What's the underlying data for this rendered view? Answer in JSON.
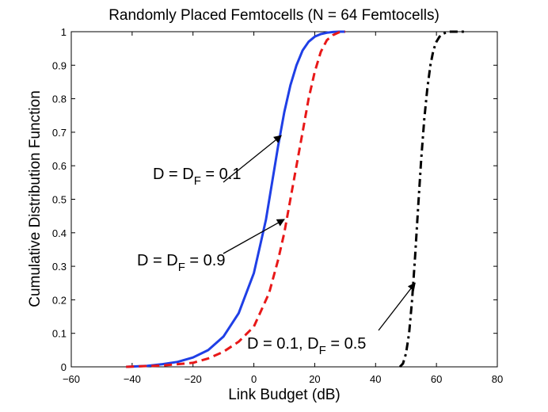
{
  "chart_data": {
    "type": "line",
    "title": "Randomly Placed Femtocells (N = 64 Femtocells)",
    "xlabel": "Link Budget (dB)",
    "ylabel": "Cumulative Distribution Function",
    "xlim": [
      -60,
      80
    ],
    "ylim": [
      0,
      1
    ],
    "xticks": [
      "−60",
      "−40",
      "−20",
      "0",
      "20",
      "40",
      "60",
      "80"
    ],
    "yticks": [
      "0",
      "0.1",
      "0.2",
      "0.3",
      "0.4",
      "0.5",
      "0.6",
      "0.7",
      "0.8",
      "0.9",
      "1"
    ],
    "grid": false,
    "series": [
      {
        "name": "D = DF = 0.1",
        "color": "#1f3fe6",
        "style": "solid",
        "x": [
          -42,
          -35,
          -30,
          -25,
          -20,
          -15,
          -10,
          -5,
          0,
          2,
          4,
          6,
          8,
          10,
          12,
          14,
          16,
          18,
          20,
          22,
          24,
          26,
          28,
          30
        ],
        "y": [
          0,
          0.003,
          0.008,
          0.015,
          0.028,
          0.05,
          0.09,
          0.16,
          0.28,
          0.36,
          0.44,
          0.55,
          0.66,
          0.76,
          0.84,
          0.9,
          0.944,
          0.97,
          0.985,
          0.993,
          0.997,
          0.999,
          1.0,
          1.0
        ]
      },
      {
        "name": "D = DF = 0.9",
        "color": "#e81818",
        "style": "dashed",
        "x": [
          -42,
          -30,
          -20,
          -15,
          -10,
          -5,
          0,
          5,
          8,
          10,
          12,
          14,
          16,
          18,
          20,
          22,
          24,
          26,
          28,
          30
        ],
        "y": [
          0,
          0.004,
          0.012,
          0.025,
          0.045,
          0.075,
          0.12,
          0.22,
          0.32,
          0.4,
          0.5,
          0.6,
          0.7,
          0.8,
          0.88,
          0.94,
          0.975,
          0.99,
          0.998,
          1.0
        ]
      },
      {
        "name": "D = 0.1, DF = 0.5",
        "color": "#000000",
        "style": "dashdot",
        "x": [
          48,
          49,
          50,
          51,
          52,
          53,
          54,
          55,
          56,
          57,
          58,
          59,
          60,
          61,
          62,
          63,
          64,
          66,
          68,
          70
        ],
        "y": [
          0,
          0.01,
          0.04,
          0.1,
          0.2,
          0.33,
          0.48,
          0.62,
          0.74,
          0.83,
          0.9,
          0.945,
          0.97,
          0.985,
          0.993,
          0.997,
          1.0,
          1.0,
          1.0,
          1.0
        ]
      }
    ],
    "annotations": [
      {
        "main": "D = D",
        "sub": "F",
        "tail": " = 0.1",
        "arrow_to": [
          9,
          0.69
        ]
      },
      {
        "main": "D = D",
        "sub": "F",
        "tail": " = 0.9",
        "arrow_to": [
          10,
          0.44
        ]
      },
      {
        "main": "D = 0.1, D",
        "sub": "F",
        "tail": " = 0.5",
        "arrow_to": [
          53,
          0.25
        ]
      }
    ]
  }
}
